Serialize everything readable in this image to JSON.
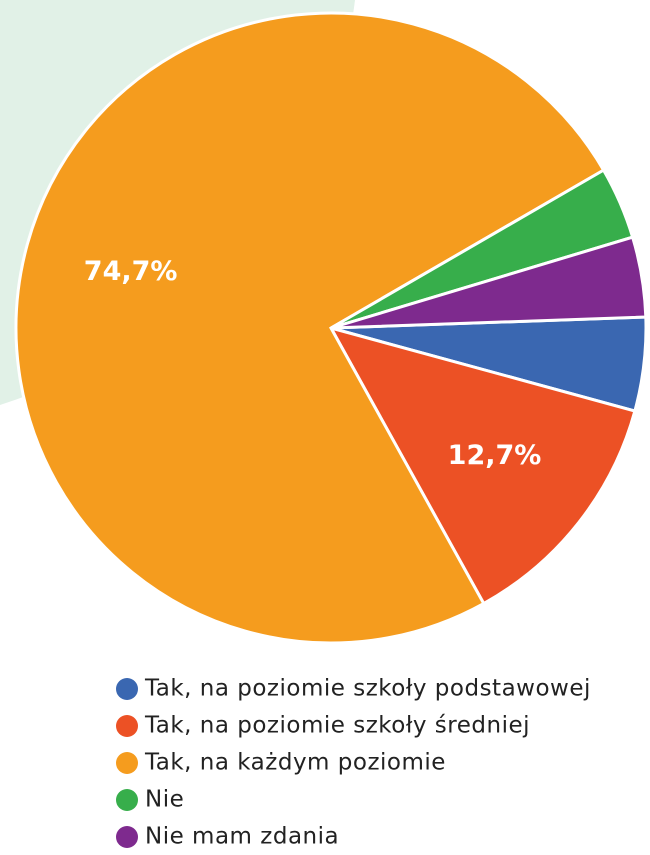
{
  "chart_data": {
    "type": "pie",
    "categories": [
      "Tak, na poziomie szkoły podstawowej",
      "Tak, na poziomie szkoły średniej",
      "Tak, na każdym poziomie",
      "Nie",
      "Nie mam zdania"
    ],
    "values": [
      4.8,
      12.7,
      74.7,
      3.7,
      4.1
    ],
    "value_labels": [
      null,
      "12,7%",
      "74,7%",
      null,
      null
    ],
    "colors": [
      "#3a67b1",
      "#ec5125",
      "#f59c1e",
      "#37ae4b",
      "#7e2a8e"
    ]
  }
}
